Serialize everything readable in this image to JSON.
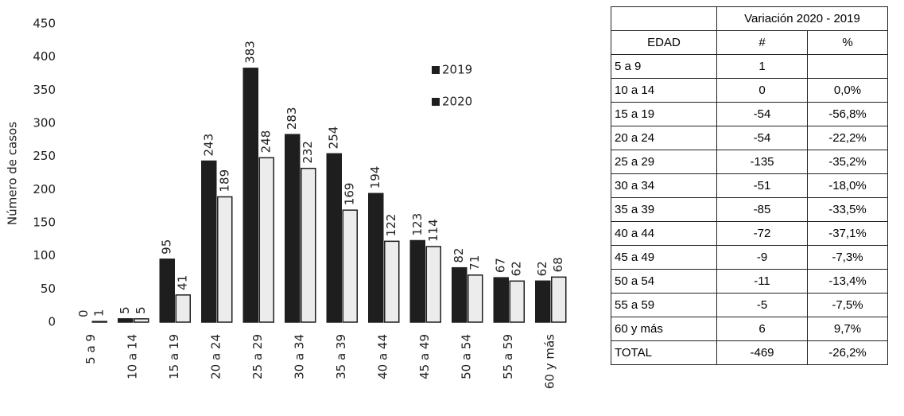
{
  "chart_data": {
    "type": "bar",
    "y_label": "Número de casos",
    "categories": [
      "5 a 9",
      "10 a 14",
      "15 a 19",
      "20 a 24",
      "25 a 29",
      "30 a 34",
      "35 a 39",
      "40 a 44",
      "45 a 49",
      "50 a 54",
      "55 a 59",
      "60 y más"
    ],
    "series": [
      {
        "name": "2019",
        "color": "#1e1e1e",
        "values": [
          0,
          5,
          95,
          243,
          383,
          283,
          254,
          194,
          123,
          82,
          67,
          62
        ]
      },
      {
        "name": "2020",
        "color": "#ececec",
        "values": [
          1,
          5,
          41,
          189,
          248,
          232,
          169,
          122,
          114,
          71,
          62,
          68
        ]
      }
    ],
    "ylim": [
      0,
      450
    ],
    "yticks": [
      0,
      50,
      100,
      150,
      200,
      250,
      300,
      350,
      400,
      450
    ],
    "grid": false,
    "legend": "right"
  },
  "table": {
    "title": "Variación 2020 - 2019",
    "columns": [
      "EDAD",
      "#",
      "%"
    ],
    "rows": [
      [
        "5 a 9",
        "1"
      ],
      [
        "10 a 14",
        "0",
        "0,0%"
      ],
      [
        "15 a 19",
        "-54",
        "-56,8%"
      ],
      [
        "20 a 24",
        "-54",
        "-22,2%"
      ],
      [
        "25 a 29",
        "-135",
        "-35,2%"
      ],
      [
        "30 a 34",
        "-51",
        "-18,0%"
      ],
      [
        "35 a 39",
        "-85",
        "-33,5%"
      ],
      [
        "40 a 44",
        "-72",
        "-37,1%"
      ],
      [
        "45 a 49",
        "-9",
        "-7,3%"
      ],
      [
        "50 a 54",
        "-11",
        "-13,4%"
      ],
      [
        "55 a 59",
        "-5",
        "-7,5%"
      ],
      [
        "60 y más",
        "6",
        "9,7%"
      ],
      [
        "TOTAL",
        "-469",
        "-26,2%"
      ]
    ]
  }
}
